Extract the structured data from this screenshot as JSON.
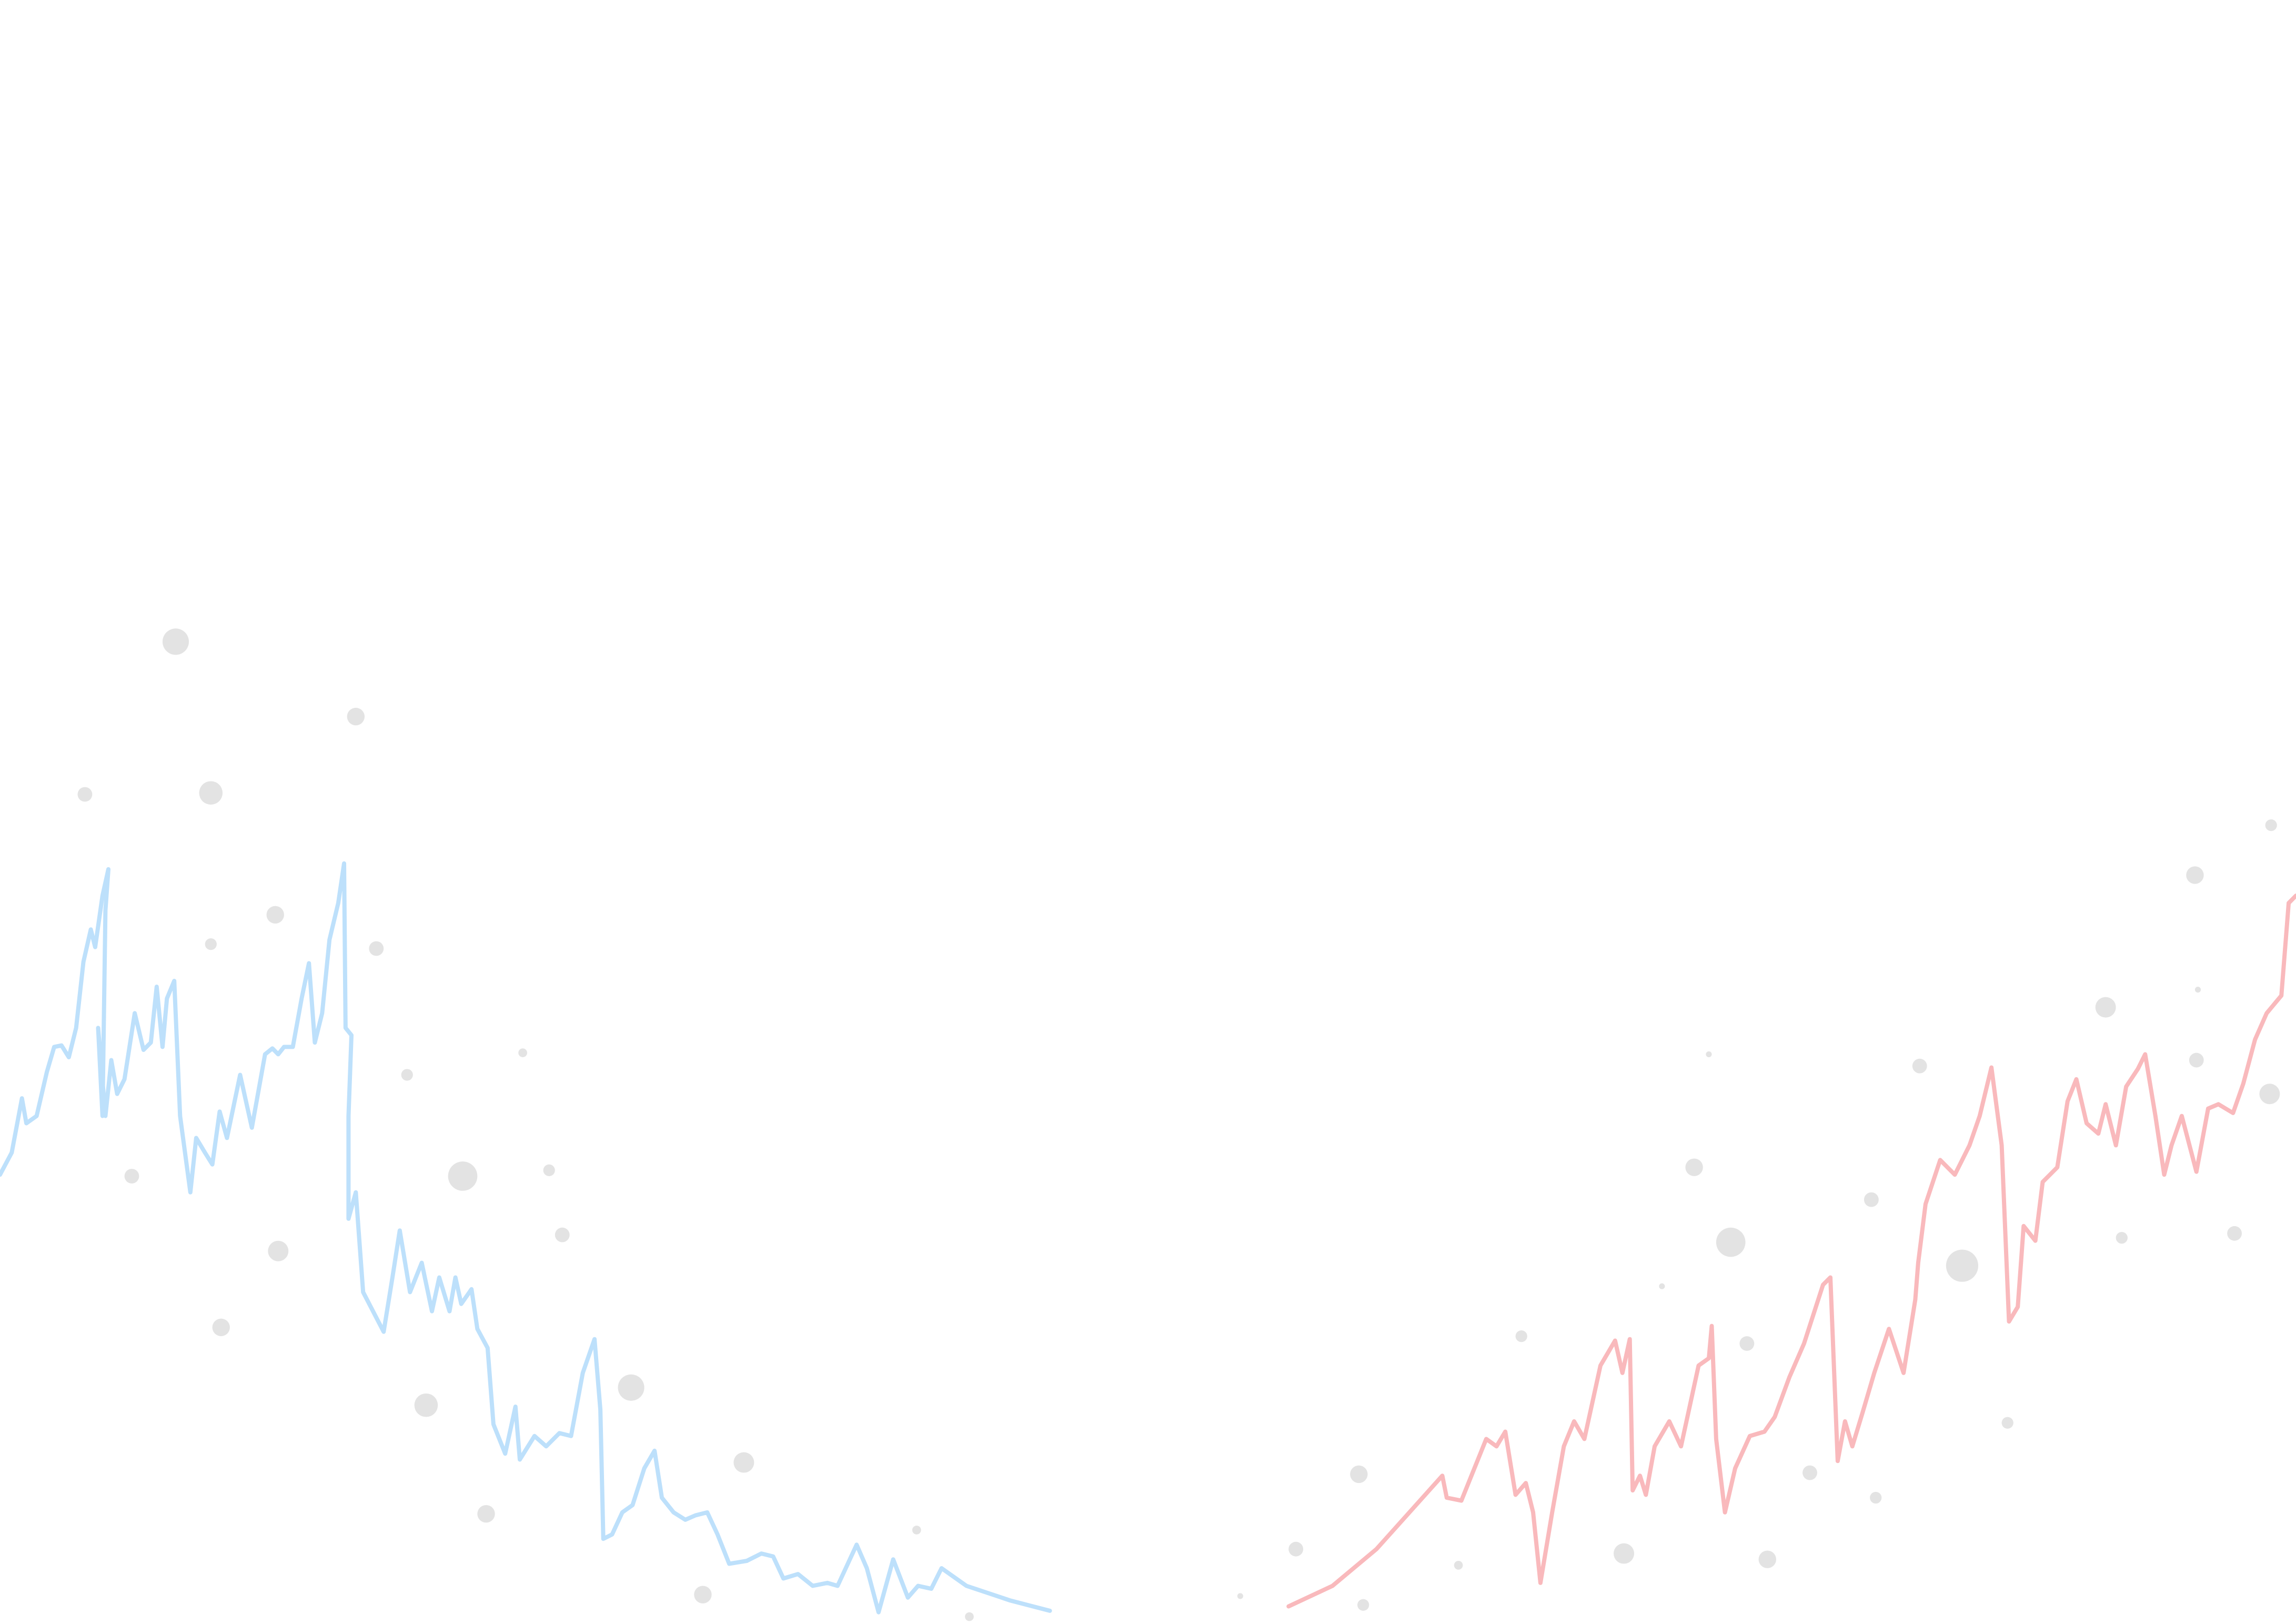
{
  "chart_data": [
    {
      "type": "line",
      "xlim": [
        0,
        1568
      ],
      "ylim": [
        1106,
        0
      ],
      "series": [
        {
          "color": "#bde0fb",
          "x": [
            0,
            8,
            15,
            18,
            25,
            32,
            37,
            42,
            47,
            52,
            57,
            62,
            65,
            70,
            74,
            72,
            70,
            67,
            72,
            76,
            80,
            85,
            92,
            98,
            103,
            107,
            111,
            114,
            119,
            123,
            130,
            134,
            140,
            145,
            150,
            155,
            164,
            172,
            181,
            186,
            190,
            194,
            200,
            206,
            211,
            215,
            220,
            225,
            231,
            235,
            236,
            240,
            238,
            238,
            243,
            248,
            262,
            268,
            273,
            280,
            288,
            295,
            300,
            307,
            311,
            315,
            322,
            326,
            333,
            337,
            345,
            352,
            355,
            365,
            373,
            382,
            390,
            398,
            406,
            410,
            412,
            418,
            425,
            432,
            440,
            447,
            452,
            460,
            468,
            475,
            483,
            490,
            498,
            510,
            520,
            528,
            535,
            545,
            555,
            565,
            572,
            585,
            592,
            600,
            610,
            620,
            627,
            636,
            643,
            660,
            690,
            717
          ],
          "values": [
            800,
            785,
            748,
            765,
            760,
            730,
            713,
            712,
            720,
            700,
            655,
            633,
            645,
            610,
            592,
            620,
            760,
            700,
            760,
            722,
            745,
            735,
            690,
            715,
            710,
            672,
            713,
            680,
            668,
            760,
            812,
            775,
            785,
            793,
            757,
            775,
            732,
            768,
            718,
            714,
            718,
            713,
            713,
            680,
            656,
            710,
            690,
            640,
            615,
            588,
            700,
            705,
            760,
            830,
            812,
            880,
            907,
            870,
            838,
            880,
            860,
            893,
            870,
            893,
            870,
            888,
            878,
            905,
            918,
            970,
            990,
            958,
            994,
            978,
            985,
            976,
            978,
            935,
            912,
            960,
            1048,
            1045,
            1030,
            1025,
            1000,
            988,
            1020,
            1030,
            1035,
            1032,
            1030,
            1045,
            1065,
            1063,
            1058,
            1060,
            1075,
            1072,
            1080,
            1078,
            1080,
            1052,
            1068,
            1098,
            1062,
            1088,
            1080,
            1082,
            1068,
            1080,
            1090,
            1097
          ]
        },
        {
          "color": "#f9b9bc",
          "x": [
            880,
            910,
            940,
            985,
            988,
            998,
            1015,
            1022,
            1028,
            1035,
            1042,
            1047,
            1052,
            1060,
            1068,
            1075,
            1082,
            1093,
            1103,
            1108,
            1113,
            1115,
            1120,
            1124,
            1130,
            1140,
            1148,
            1160,
            1167,
            1169,
            1172,
            1178,
            1185,
            1195,
            1205,
            1212,
            1222,
            1232,
            1245,
            1250,
            1255,
            1260,
            1265,
            1272,
            1280,
            1290,
            1300,
            1308,
            1310,
            1315,
            1325,
            1335,
            1345,
            1352,
            1360,
            1367,
            1372,
            1378,
            1382,
            1390,
            1395,
            1405,
            1412,
            1418,
            1425,
            1433,
            1438,
            1445,
            1452,
            1460,
            1465,
            1472,
            1478,
            1483,
            1490,
            1500,
            1508,
            1515,
            1525,
            1532,
            1540,
            1548,
            1558,
            1563,
            1568
          ],
          "values": [
            1094,
            1080,
            1055,
            1005,
            1020,
            1022,
            980,
            985,
            975,
            1018,
            1010,
            1030,
            1078,
            1030,
            985,
            968,
            980,
            930,
            913,
            935,
            912,
            1015,
            1005,
            1018,
            985,
            968,
            985,
            930,
            925,
            903,
            980,
            1030,
            1000,
            978,
            975,
            965,
            938,
            915,
            875,
            870,
            995,
            968,
            985,
            962,
            935,
            905,
            935,
            885,
            860,
            820,
            790,
            800,
            780,
            760,
            727,
            780,
            900,
            890,
            835,
            845,
            805,
            795,
            750,
            735,
            765,
            772,
            752,
            780,
            740,
            728,
            718,
            760,
            800,
            780,
            760,
            798,
            755,
            752,
            758,
            738,
            708,
            690,
            678,
            615,
            610
          ]
        }
      ]
    },
    {
      "type": "scatter",
      "xlim": [
        0,
        1568
      ],
      "ylim": [
        1106,
        0
      ],
      "color": "#e3e3e3",
      "x": [
        120,
        243,
        58,
        144,
        188,
        144,
        257,
        357,
        278,
        90,
        316,
        375,
        384,
        190,
        151,
        291,
        431,
        508,
        332,
        480,
        626,
        662,
        847,
        885,
        928,
        931,
        996,
        1039,
        1109,
        1135,
        1157,
        1167,
        1182,
        1193,
        1207,
        1236,
        1278,
        1281,
        1311,
        1340,
        1371,
        1438,
        1449,
        1499,
        1501,
        1500,
        1526,
        1550,
        1551
      ],
      "values": [
        437,
        488,
        541,
        540,
        623,
        643,
        646,
        717,
        732,
        801,
        801,
        797,
        841,
        852,
        904,
        957,
        945,
        996,
        1031,
        1086,
        1042,
        1101,
        1087,
        1055,
        1004,
        1093,
        1066,
        910,
        1058,
        876,
        795,
        718,
        846,
        915,
        1062,
        1003,
        817,
        1020,
        726,
        862,
        969,
        686,
        843,
        596,
        674,
        722,
        840,
        745,
        562
      ],
      "sizes": [
        9,
        6,
        5,
        8,
        6,
        4,
        5,
        3,
        4,
        5,
        10,
        4,
        5,
        7,
        6,
        8,
        9,
        7,
        6,
        6,
        3,
        3,
        2,
        5,
        6,
        4,
        3,
        4,
        7,
        2,
        6,
        2,
        10,
        5,
        6,
        5,
        5,
        4,
        5,
        11,
        4,
        7,
        4,
        6,
        2,
        5,
        5,
        7,
        4
      ]
    }
  ]
}
